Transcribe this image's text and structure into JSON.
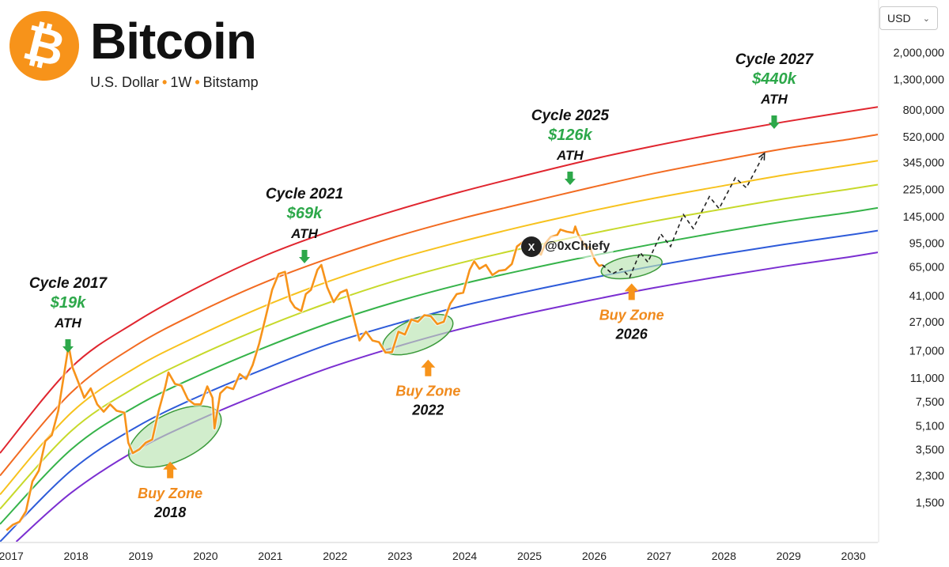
{
  "header": {
    "logo_glyph": "₿",
    "title": "Bitcoin",
    "subtitle_parts": [
      "U.S. Dollar",
      "1W",
      "Bitstamp"
    ],
    "subtitle_separator": "•"
  },
  "currency_selector": {
    "value": "USD",
    "chevron": "chevron-down-icon"
  },
  "watermark": {
    "icon": "x-logo-icon",
    "icon_glyph": "X",
    "text": "@0xChiefy"
  },
  "colors": {
    "price": "#F7931A",
    "bands": [
      "#E0262F",
      "#F26B21",
      "#F7C21E",
      "#C7D92B",
      "#36B34A",
      "#2E5BD9",
      "#7B2FD1"
    ],
    "ath_arrow": "#2DA84A",
    "buy_arrow": "#F7931A",
    "buy_zone_fill": "#B9E3B0",
    "buy_zone_stroke": "#3C9A3C"
  },
  "chart_data": {
    "type": "line",
    "title": "Bitcoin",
    "x_ticks": [
      "2017",
      "2018",
      "2019",
      "2020",
      "2021",
      "2022",
      "2023",
      "2024",
      "2025",
      "2026",
      "2027",
      "2028",
      "2029",
      "2030"
    ],
    "y_ticks": [
      {
        "value": 2000000,
        "label": "2,000,000"
      },
      {
        "value": 1300000,
        "label": "1,300,000"
      },
      {
        "value": 800000,
        "label": "800,000"
      },
      {
        "value": 520000,
        "label": "520,000"
      },
      {
        "value": 345000,
        "label": "345,000"
      },
      {
        "value": 225000,
        "label": "225,000"
      },
      {
        "value": 145000,
        "label": "145,000"
      },
      {
        "value": 95000,
        "label": "95,000"
      },
      {
        "value": 65000,
        "label": "65,000"
      },
      {
        "value": 41000,
        "label": "41,000"
      },
      {
        "value": 27000,
        "label": "27,000"
      },
      {
        "value": 17000,
        "label": "17,000"
      },
      {
        "value": 11000,
        "label": "11,000"
      },
      {
        "value": 7500,
        "label": "7,500"
      },
      {
        "value": 5100,
        "label": "5,100"
      },
      {
        "value": 3500,
        "label": "3,500"
      },
      {
        "value": 2300,
        "label": "2,300"
      },
      {
        "value": 1500,
        "label": "1,500"
      }
    ],
    "y_scale": "log",
    "x_range": [
      2016.9,
      2030.45
    ],
    "y_range": [
      800,
      2800000
    ],
    "grid": false,
    "rainbow_bands": [
      {
        "color": "#E0262F",
        "points": [
          [
            2016.9,
            3300
          ],
          [
            2018,
            13000
          ],
          [
            2019,
            27000
          ],
          [
            2020,
            48000
          ],
          [
            2021,
            78000
          ],
          [
            2022,
            115000
          ],
          [
            2023,
            160000
          ],
          [
            2024,
            215000
          ],
          [
            2025,
            280000
          ],
          [
            2026,
            360000
          ],
          [
            2027,
            450000
          ],
          [
            2028,
            550000
          ],
          [
            2029,
            660000
          ],
          [
            2030,
            780000
          ],
          [
            2030.45,
            840000
          ]
        ]
      },
      {
        "color": "#F26B21",
        "points": [
          [
            2016.9,
            2300
          ],
          [
            2018,
            8700
          ],
          [
            2019,
            18500
          ],
          [
            2020,
            32000
          ],
          [
            2021,
            51000
          ],
          [
            2022,
            75000
          ],
          [
            2023,
            105000
          ],
          [
            2024,
            140000
          ],
          [
            2025,
            180000
          ],
          [
            2026,
            230000
          ],
          [
            2027,
            290000
          ],
          [
            2028,
            355000
          ],
          [
            2029,
            430000
          ],
          [
            2030,
            500000
          ],
          [
            2030.45,
            540000
          ]
        ]
      },
      {
        "color": "#F7C21E",
        "points": [
          [
            2016.9,
            1700
          ],
          [
            2018,
            6300
          ],
          [
            2019,
            13000
          ],
          [
            2020,
            22000
          ],
          [
            2021,
            35000
          ],
          [
            2022,
            52000
          ],
          [
            2023,
            73000
          ],
          [
            2024,
            97000
          ],
          [
            2025,
            125000
          ],
          [
            2026,
            158000
          ],
          [
            2027,
            195000
          ],
          [
            2028,
            235000
          ],
          [
            2029,
            282000
          ],
          [
            2030,
            330000
          ],
          [
            2030.45,
            355000
          ]
        ]
      },
      {
        "color": "#C7D92B",
        "points": [
          [
            2016.9,
            1350
          ],
          [
            2018,
            4700
          ],
          [
            2019,
            9500
          ],
          [
            2020,
            16000
          ],
          [
            2021,
            25000
          ],
          [
            2022,
            37000
          ],
          [
            2023,
            52000
          ],
          [
            2024,
            69000
          ],
          [
            2025,
            88000
          ],
          [
            2026,
            110000
          ],
          [
            2027,
            135000
          ],
          [
            2028,
            162000
          ],
          [
            2029,
            193000
          ],
          [
            2030,
            225000
          ],
          [
            2030.45,
            242000
          ]
        ]
      },
      {
        "color": "#36B34A",
        "points": [
          [
            2016.9,
            1060
          ],
          [
            2018,
            3500
          ],
          [
            2019,
            7000
          ],
          [
            2020,
            11600
          ],
          [
            2021,
            18000
          ],
          [
            2022,
            26600
          ],
          [
            2023,
            37000
          ],
          [
            2024,
            49000
          ],
          [
            2025,
            62000
          ],
          [
            2026,
            77000
          ],
          [
            2027,
            94000
          ],
          [
            2028,
            113000
          ],
          [
            2029,
            134000
          ],
          [
            2030,
            155000
          ],
          [
            2030.45,
            167000
          ]
        ]
      },
      {
        "color": "#2E5BD9",
        "points": [
          [
            2016.9,
            800
          ],
          [
            2018,
            2500
          ],
          [
            2019,
            5000
          ],
          [
            2020,
            8300
          ],
          [
            2021,
            12800
          ],
          [
            2022,
            19000
          ],
          [
            2023,
            26000
          ],
          [
            2024,
            34500
          ],
          [
            2025,
            43500
          ],
          [
            2026,
            54000
          ],
          [
            2027,
            66000
          ],
          [
            2028,
            79000
          ],
          [
            2029,
            93000
          ],
          [
            2030,
            108000
          ],
          [
            2030.45,
            116000
          ]
        ]
      },
      {
        "color": "#7B2FD1",
        "points": [
          [
            2017.15,
            800
          ],
          [
            2018,
            1750
          ],
          [
            2019,
            3450
          ],
          [
            2020,
            5700
          ],
          [
            2021,
            8800
          ],
          [
            2022,
            13000
          ],
          [
            2023,
            18000
          ],
          [
            2024,
            24000
          ],
          [
            2025,
            30500
          ],
          [
            2026,
            38000
          ],
          [
            2027,
            46500
          ],
          [
            2028,
            55500
          ],
          [
            2029,
            65500
          ],
          [
            2030,
            76000
          ],
          [
            2030.45,
            82000
          ]
        ]
      }
    ],
    "series": [
      {
        "name": "BTC/USD",
        "points": [
          [
            2017.0,
            960
          ],
          [
            2017.1,
            1050
          ],
          [
            2017.2,
            1100
          ],
          [
            2017.3,
            1300
          ],
          [
            2017.4,
            2100
          ],
          [
            2017.5,
            2500
          ],
          [
            2017.6,
            4000
          ],
          [
            2017.7,
            4400
          ],
          [
            2017.8,
            6500
          ],
          [
            2017.88,
            11000
          ],
          [
            2017.96,
            18500
          ],
          [
            2018.02,
            13000
          ],
          [
            2018.1,
            10500
          ],
          [
            2018.2,
            8000
          ],
          [
            2018.3,
            9300
          ],
          [
            2018.4,
            7200
          ],
          [
            2018.5,
            6400
          ],
          [
            2018.6,
            7200
          ],
          [
            2018.7,
            6500
          ],
          [
            2018.82,
            6300
          ],
          [
            2018.88,
            3900
          ],
          [
            2018.95,
            3300
          ],
          [
            2019.05,
            3500
          ],
          [
            2019.15,
            3900
          ],
          [
            2019.25,
            4100
          ],
          [
            2019.35,
            6500
          ],
          [
            2019.45,
            9500
          ],
          [
            2019.5,
            12000
          ],
          [
            2019.6,
            10000
          ],
          [
            2019.7,
            9700
          ],
          [
            2019.8,
            7800
          ],
          [
            2019.9,
            7200
          ],
          [
            2020.0,
            7200
          ],
          [
            2020.1,
            9600
          ],
          [
            2020.18,
            8000
          ],
          [
            2020.21,
            4900
          ],
          [
            2020.3,
            8600
          ],
          [
            2020.4,
            9500
          ],
          [
            2020.5,
            9200
          ],
          [
            2020.6,
            11700
          ],
          [
            2020.7,
            10800
          ],
          [
            2020.8,
            13500
          ],
          [
            2020.9,
            19000
          ],
          [
            2021.0,
            29000
          ],
          [
            2021.1,
            45000
          ],
          [
            2021.2,
            58000
          ],
          [
            2021.3,
            60000
          ],
          [
            2021.38,
            38000
          ],
          [
            2021.45,
            34000
          ],
          [
            2021.55,
            32000
          ],
          [
            2021.62,
            42000
          ],
          [
            2021.7,
            45000
          ],
          [
            2021.8,
            62000
          ],
          [
            2021.86,
            67000
          ],
          [
            2021.95,
            47000
          ],
          [
            2022.05,
            37000
          ],
          [
            2022.15,
            43000
          ],
          [
            2022.25,
            45000
          ],
          [
            2022.35,
            30000
          ],
          [
            2022.45,
            20000
          ],
          [
            2022.55,
            23000
          ],
          [
            2022.65,
            20000
          ],
          [
            2022.75,
            19500
          ],
          [
            2022.85,
            16500
          ],
          [
            2022.95,
            16600
          ],
          [
            2023.05,
            23000
          ],
          [
            2023.15,
            22000
          ],
          [
            2023.25,
            28000
          ],
          [
            2023.35,
            27000
          ],
          [
            2023.45,
            30000
          ],
          [
            2023.55,
            29500
          ],
          [
            2023.65,
            26000
          ],
          [
            2023.75,
            27000
          ],
          [
            2023.85,
            36000
          ],
          [
            2023.95,
            42000
          ],
          [
            2024.05,
            43000
          ],
          [
            2024.15,
            62000
          ],
          [
            2024.22,
            71000
          ],
          [
            2024.3,
            63000
          ],
          [
            2024.4,
            67000
          ],
          [
            2024.5,
            57000
          ],
          [
            2024.6,
            61000
          ],
          [
            2024.7,
            62000
          ],
          [
            2024.8,
            68000
          ],
          [
            2024.88,
            90000
          ],
          [
            2024.96,
            96000
          ],
          [
            2025.05,
            102000
          ],
          [
            2025.15,
            86000
          ],
          [
            2025.25,
            79000
          ],
          [
            2025.32,
            95000
          ],
          [
            2025.4,
            105000
          ],
          [
            2025.5,
            108000
          ],
          [
            2025.55,
            118000
          ],
          [
            2025.65,
            114000
          ],
          [
            2025.75,
            112000
          ],
          [
            2025.78,
            124000
          ],
          [
            2025.82,
            110000
          ],
          [
            2025.9,
            95000
          ],
          [
            2025.96,
            87000
          ],
          [
            2026.0,
            90000
          ],
          [
            2026.05,
            78000
          ],
          [
            2026.1,
            70000
          ],
          [
            2026.15,
            66000
          ],
          [
            2026.2,
            67000
          ]
        ]
      },
      {
        "name": "Projection",
        "points": [
          [
            2026.2,
            67000
          ],
          [
            2026.35,
            58000
          ],
          [
            2026.5,
            63000
          ],
          [
            2026.62,
            55000
          ],
          [
            2026.78,
            82000
          ],
          [
            2026.9,
            70000
          ],
          [
            2027.1,
            110000
          ],
          [
            2027.25,
            90000
          ],
          [
            2027.45,
            150000
          ],
          [
            2027.6,
            120000
          ],
          [
            2027.85,
            200000
          ],
          [
            2028.0,
            165000
          ],
          [
            2028.25,
            270000
          ],
          [
            2028.42,
            230000
          ],
          [
            2028.7,
            400000
          ]
        ]
      }
    ],
    "buy_zones": [
      {
        "label": "Buy Zone",
        "year": "2018",
        "center": [
          2019.6,
          4300
        ],
        "width_years": 1.55,
        "height_decades": 0.33,
        "angle_deg": -26,
        "arrow_from": 4000
      },
      {
        "label": "Buy Zone",
        "year": "2022",
        "center": [
          2023.35,
          22000
        ],
        "width_years": 1.15,
        "height_decades": 0.22,
        "angle_deg": -22,
        "arrow_from": 18500
      },
      {
        "label": "Buy Zone",
        "year": "2026",
        "center": [
          2026.65,
          65000
        ],
        "width_years": 0.95,
        "height_decades": 0.15,
        "angle_deg": -10,
        "arrow_from": 58000
      }
    ],
    "annotations": [
      {
        "cycle": "Cycle 2017",
        "price": "$19k",
        "ath": "ATH",
        "x": 2017.95
      },
      {
        "cycle": "Cycle 2021",
        "price": "$69k",
        "ath": "ATH",
        "x": 2021.6
      },
      {
        "cycle": "Cycle 2025",
        "price": "$126k",
        "ath": "ATH",
        "x": 2025.7
      },
      {
        "cycle": "Cycle 2027",
        "price": "$440k",
        "ath": "ATH",
        "x": 2028.85
      }
    ]
  }
}
